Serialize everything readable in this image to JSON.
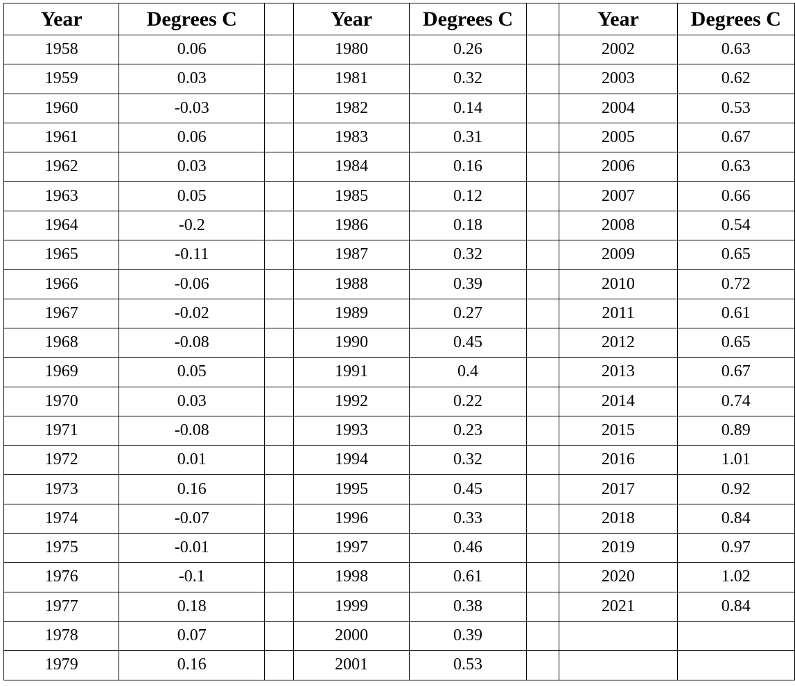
{
  "headers": {
    "year": "Year",
    "degrees": "Degrees C"
  },
  "columns": [
    {
      "rows": [
        {
          "year": "1958",
          "value": "0.06"
        },
        {
          "year": "1959",
          "value": "0.03"
        },
        {
          "year": "1960",
          "value": "-0.03"
        },
        {
          "year": "1961",
          "value": "0.06"
        },
        {
          "year": "1962",
          "value": "0.03"
        },
        {
          "year": "1963",
          "value": "0.05"
        },
        {
          "year": "1964",
          "value": "-0.2"
        },
        {
          "year": "1965",
          "value": "-0.11"
        },
        {
          "year": "1966",
          "value": "-0.06"
        },
        {
          "year": "1967",
          "value": "-0.02"
        },
        {
          "year": "1968",
          "value": "-0.08"
        },
        {
          "year": "1969",
          "value": "0.05"
        },
        {
          "year": "1970",
          "value": "0.03"
        },
        {
          "year": "1971",
          "value": "-0.08"
        },
        {
          "year": "1972",
          "value": "0.01"
        },
        {
          "year": "1973",
          "value": "0.16"
        },
        {
          "year": "1974",
          "value": "-0.07"
        },
        {
          "year": "1975",
          "value": "-0.01"
        },
        {
          "year": "1976",
          "value": "-0.1"
        },
        {
          "year": "1977",
          "value": "0.18"
        },
        {
          "year": "1978",
          "value": "0.07"
        },
        {
          "year": "1979",
          "value": "0.16"
        }
      ]
    },
    {
      "rows": [
        {
          "year": "1980",
          "value": "0.26"
        },
        {
          "year": "1981",
          "value": "0.32"
        },
        {
          "year": "1982",
          "value": "0.14"
        },
        {
          "year": "1983",
          "value": "0.31"
        },
        {
          "year": "1984",
          "value": "0.16"
        },
        {
          "year": "1985",
          "value": "0.12"
        },
        {
          "year": "1986",
          "value": "0.18"
        },
        {
          "year": "1987",
          "value": "0.32"
        },
        {
          "year": "1988",
          "value": "0.39"
        },
        {
          "year": "1989",
          "value": "0.27"
        },
        {
          "year": "1990",
          "value": "0.45"
        },
        {
          "year": "1991",
          "value": "0.4"
        },
        {
          "year": "1992",
          "value": "0.22"
        },
        {
          "year": "1993",
          "value": "0.23"
        },
        {
          "year": "1994",
          "value": "0.32"
        },
        {
          "year": "1995",
          "value": "0.45"
        },
        {
          "year": "1996",
          "value": "0.33"
        },
        {
          "year": "1997",
          "value": "0.46"
        },
        {
          "year": "1998",
          "value": "0.61"
        },
        {
          "year": "1999",
          "value": "0.38"
        },
        {
          "year": "2000",
          "value": "0.39"
        },
        {
          "year": "2001",
          "value": "0.53"
        }
      ]
    },
    {
      "rows": [
        {
          "year": "2002",
          "value": "0.63"
        },
        {
          "year": "2003",
          "value": "0.62"
        },
        {
          "year": "2004",
          "value": "0.53"
        },
        {
          "year": "2005",
          "value": "0.67"
        },
        {
          "year": "2006",
          "value": "0.63"
        },
        {
          "year": "2007",
          "value": "0.66"
        },
        {
          "year": "2008",
          "value": "0.54"
        },
        {
          "year": "2009",
          "value": "0.65"
        },
        {
          "year": "2010",
          "value": "0.72"
        },
        {
          "year": "2011",
          "value": "0.61"
        },
        {
          "year": "2012",
          "value": "0.65"
        },
        {
          "year": "2013",
          "value": "0.67"
        },
        {
          "year": "2014",
          "value": "0.74"
        },
        {
          "year": "2015",
          "value": "0.89"
        },
        {
          "year": "2016",
          "value": "1.01"
        },
        {
          "year": "2017",
          "value": "0.92"
        },
        {
          "year": "2018",
          "value": "0.84"
        },
        {
          "year": "2019",
          "value": "0.97"
        },
        {
          "year": "2020",
          "value": "1.02"
        },
        {
          "year": "2021",
          "value": "0.84"
        }
      ]
    }
  ]
}
